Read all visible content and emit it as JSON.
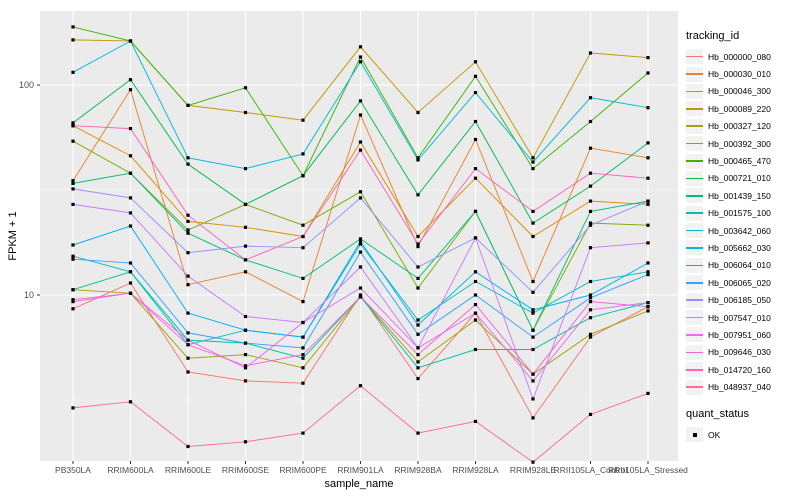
{
  "chart_data": {
    "type": "line",
    "title": "",
    "xlabel": "sample_name",
    "ylabel": "FPKM + 1",
    "yscale": "log10",
    "grid": true,
    "legend_position": "right",
    "marker": "black-square",
    "x_categories": [
      "PB350LA",
      "RRIM600LA",
      "RRIM600LE",
      "RRIM600SE",
      "RRIM600PE",
      "RRIM901LA",
      "RRIM928BA",
      "RRIM928LA",
      "RRIM928LE",
      "RRII105LA_Control",
      "RRII105LA_Stressed"
    ],
    "y_ticks": [
      {
        "value": 100,
        "label": "100"
      },
      {
        "value": 10,
        "label": "10"
      }
    ],
    "y_minor_ticks": [
      31.623,
      3.162
    ],
    "ylim": [
      1.55,
      230
    ],
    "legend": {
      "series_title": "tracking_id",
      "status_title": "quant_status",
      "status_items": [
        {
          "label": "OK",
          "marker": "black-square"
        }
      ]
    },
    "series": [
      {
        "name": "Hb_000000_080",
        "color": "#F8766D",
        "values": [
          8.6,
          11.4,
          4.3,
          3.9,
          3.8,
          10,
          4.0,
          8.2,
          2.6,
          6.3,
          8.8
        ]
      },
      {
        "name": "Hb_000030_010",
        "color": "#EA8331",
        "values": [
          35,
          95,
          11.2,
          12.9,
          9.3,
          72,
          17,
          55,
          11.6,
          50,
          45
        ]
      },
      {
        "name": "Hb_000046_300",
        "color": "#D89000",
        "values": [
          64,
          46,
          22.4,
          21,
          19,
          53.5,
          19,
          36,
          19,
          28,
          27
        ]
      },
      {
        "name": "Hb_000089_220",
        "color": "#C09B00",
        "values": [
          164,
          162,
          80,
          74,
          68,
          152,
          74,
          129,
          45,
          142,
          135
        ]
      },
      {
        "name": "Hb_000327_120",
        "color": "#A3A500",
        "values": [
          10.6,
          10.2,
          5.0,
          5.2,
          4.5,
          9.8,
          4.8,
          7.6,
          4.2,
          6.5,
          8.4
        ]
      },
      {
        "name": "Hb_000392_300",
        "color": "#7CAE00",
        "values": [
          54,
          38,
          20.4,
          27,
          21.5,
          31,
          10.8,
          25,
          6.8,
          22,
          21.5
        ]
      },
      {
        "name": "Hb_000465_470",
        "color": "#39B600",
        "values": [
          189,
          162,
          80,
          97,
          37,
          136,
          45,
          110,
          40,
          67,
          114
        ]
      },
      {
        "name": "Hb_000721_010",
        "color": "#00BB4E",
        "values": [
          66,
          106,
          42,
          27,
          37,
          84,
          30,
          67,
          22,
          33,
          53
        ]
      },
      {
        "name": "Hb_001439_150",
        "color": "#00BF7D",
        "values": [
          34,
          38,
          19.7,
          14.7,
          12,
          18.5,
          12,
          25,
          6.8,
          25,
          28
        ]
      },
      {
        "name": "Hb_001575_100",
        "color": "#00C1A3",
        "values": [
          10.6,
          12.9,
          6.1,
          5.9,
          5.0,
          9.8,
          4.5,
          5.5,
          5.5,
          7.8,
          9.2
        ]
      },
      {
        "name": "Hb_003642_060",
        "color": "#00BFC4",
        "values": [
          15.3,
          12.9,
          5.8,
          6.8,
          6.3,
          17.5,
          7.6,
          11.6,
          8.2,
          11.6,
          12.9
        ]
      },
      {
        "name": "Hb_005662_030",
        "color": "#00BBDA",
        "values": [
          115,
          162,
          45,
          40,
          47,
          129,
          44,
          92,
          43,
          87,
          78
        ]
      },
      {
        "name": "Hb_006064_010",
        "color": "#00B0F6",
        "values": [
          17.3,
          21.3,
          8.2,
          6.8,
          6.3,
          18,
          7.2,
          12.9,
          8.5,
          10,
          14.2
        ]
      },
      {
        "name": "Hb_006065_020",
        "color": "#35A2FF",
        "values": [
          14.8,
          14.2,
          6.6,
          5.9,
          5.6,
          16,
          6.5,
          10,
          6.3,
          9.7,
          12.5
        ]
      },
      {
        "name": "Hb_006185_050",
        "color": "#9590FF",
        "values": [
          32,
          29,
          15.9,
          17.1,
          16.8,
          29,
          13.6,
          18.7,
          10.3,
          21.5,
          28
        ]
      },
      {
        "name": "Hb_007547_010",
        "color": "#C77CFF",
        "values": [
          27,
          24.6,
          12.3,
          7.9,
          7.4,
          13.6,
          5.6,
          18.7,
          3.2,
          16.8,
          17.7
        ]
      },
      {
        "name": "Hb_007951_060",
        "color": "#E76BF3",
        "values": [
          9.5,
          10.2,
          6.1,
          4.5,
          7.4,
          10.8,
          5.6,
          8.2,
          3.9,
          8.5,
          9.2
        ]
      },
      {
        "name": "Hb_009646_030",
        "color": "#FA62DB",
        "values": [
          9.3,
          10.2,
          5.8,
          4.6,
          5.2,
          9.8,
          5.2,
          9.0,
          4.2,
          9.3,
          8.8
        ]
      },
      {
        "name": "Hb_014720_160",
        "color": "#FF62BC",
        "values": [
          64,
          62,
          24,
          14.7,
          19,
          49,
          17.5,
          40,
          25,
          38,
          36
        ]
      },
      {
        "name": "Hb_048937_040",
        "color": "#FF6A98",
        "values": [
          2.9,
          3.1,
          1.9,
          2.0,
          2.2,
          3.7,
          2.2,
          2.5,
          1.6,
          2.7,
          3.4
        ]
      }
    ]
  },
  "style": {
    "panel_bg": "#EBEBEB",
    "grid_color": "#FFFFFF",
    "key_bg": "#F2F2F2",
    "tick_text_color": "#4D4D4D",
    "tick_mark_color": "#333333",
    "marker_color": "#000000"
  }
}
